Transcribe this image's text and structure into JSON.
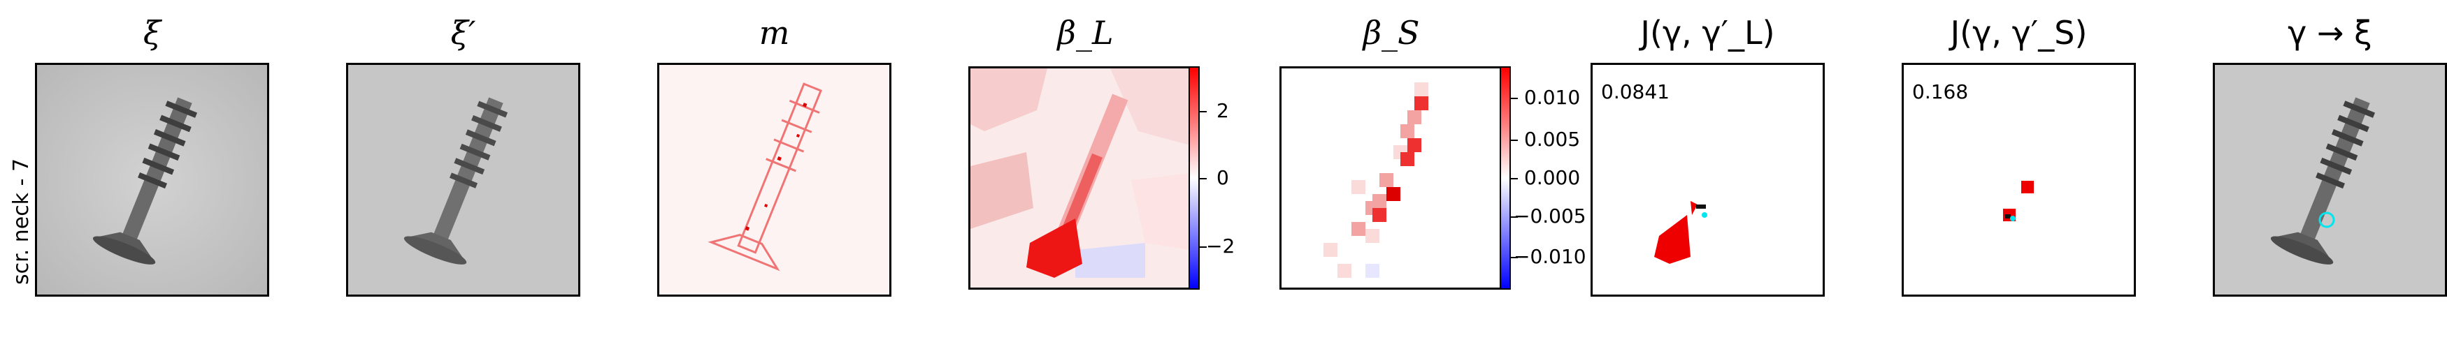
{
  "row_label": "scr. neck - 7",
  "panels": [
    {
      "title": "ξ"
    },
    {
      "title": "ξ′"
    },
    {
      "title": "m"
    },
    {
      "title": "β_L"
    },
    {
      "title": "β_S"
    },
    {
      "title": "J(γ, γ′_L)"
    },
    {
      "title": "J(γ, γ′_S)"
    },
    {
      "title": "γ → ξ"
    }
  ],
  "colorbar_L": {
    "ticks": [
      "2",
      "0",
      "−2"
    ]
  },
  "colorbar_S": {
    "ticks": [
      "0.010",
      "0.005",
      "0.000",
      "−0.005",
      "−0.010"
    ]
  },
  "annotations": {
    "jl_value": "0.0841",
    "js_value": "0.168"
  },
  "colors": {
    "red": "#ff0000",
    "blue": "#0000ff",
    "cyan": "#00e5ee",
    "gray_bg": "#c9c9c9"
  },
  "icons": {
    "screw": "screw-image",
    "marker": "cyan-circle-marker"
  }
}
